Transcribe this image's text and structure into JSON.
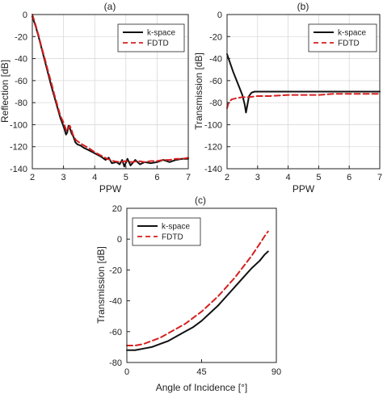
{
  "chart_data": [
    {
      "type": "line",
      "panel_label": "(a)",
      "title": "",
      "xlabel": "PPW",
      "ylabel": "Reflection [dB]",
      "xlim": [
        2,
        7
      ],
      "ylim": [
        -140,
        0
      ],
      "xticks": [
        2,
        3,
        4,
        5,
        6,
        7
      ],
      "yticks": [
        0,
        -20,
        -40,
        -60,
        -80,
        -100,
        -120,
        -140
      ],
      "xtick_labels": [
        "2",
        "3",
        "4",
        "5",
        "6",
        "7"
      ],
      "ytick_labels": [
        "0",
        "-20",
        "-40",
        "-60",
        "-80",
        "-100",
        "-120",
        "-140"
      ],
      "grid": true,
      "legend": "top-right",
      "series": [
        {
          "name": "k-space",
          "color": "#111111",
          "style": "solid",
          "points": [
            [
              2.0,
              -2
            ],
            [
              2.1,
              -10
            ],
            [
              2.2,
              -20
            ],
            [
              2.3,
              -31
            ],
            [
              2.4,
              -42
            ],
            [
              2.5,
              -53
            ],
            [
              2.6,
              -64
            ],
            [
              2.7,
              -74
            ],
            [
              2.8,
              -84
            ],
            [
              2.9,
              -94
            ],
            [
              2.98,
              -100
            ],
            [
              3.03,
              -104
            ],
            [
              3.08,
              -109
            ],
            [
              3.12,
              -107
            ],
            [
              3.16,
              -101
            ],
            [
              3.2,
              -103
            ],
            [
              3.26,
              -108
            ],
            [
              3.32,
              -111
            ],
            [
              3.38,
              -116
            ],
            [
              3.45,
              -118
            ],
            [
              3.55,
              -119
            ],
            [
              3.65,
              -121
            ],
            [
              3.8,
              -123
            ],
            [
              4.0,
              -126
            ],
            [
              4.2,
              -129
            ],
            [
              4.35,
              -132
            ],
            [
              4.45,
              -130
            ],
            [
              4.55,
              -135
            ],
            [
              4.7,
              -134
            ],
            [
              4.8,
              -136
            ],
            [
              4.88,
              -132
            ],
            [
              4.95,
              -138
            ],
            [
              5.05,
              -131
            ],
            [
              5.15,
              -137
            ],
            [
              5.3,
              -132
            ],
            [
              5.45,
              -136
            ],
            [
              5.6,
              -134
            ],
            [
              5.8,
              -135
            ],
            [
              6.0,
              -134
            ],
            [
              6.2,
              -132
            ],
            [
              6.4,
              -134
            ],
            [
              6.6,
              -132
            ],
            [
              6.8,
              -131
            ],
            [
              7.0,
              -131
            ]
          ]
        },
        {
          "name": "FDTD",
          "color": "#d61f1f",
          "style": "dashed",
          "points": [
            [
              2.0,
              0
            ],
            [
              2.1,
              -9
            ],
            [
              2.2,
              -19
            ],
            [
              2.3,
              -30
            ],
            [
              2.4,
              -40
            ],
            [
              2.5,
              -51
            ],
            [
              2.6,
              -61
            ],
            [
              2.7,
              -72
            ],
            [
              2.8,
              -82
            ],
            [
              2.9,
              -92
            ],
            [
              3.0,
              -98
            ],
            [
              3.05,
              -102
            ],
            [
              3.1,
              -106
            ],
            [
              3.15,
              -104
            ],
            [
              3.2,
              -101
            ],
            [
              3.25,
              -104
            ],
            [
              3.3,
              -109
            ],
            [
              3.4,
              -114
            ],
            [
              3.5,
              -116
            ],
            [
              3.6,
              -118
            ],
            [
              3.8,
              -121
            ],
            [
              4.0,
              -125
            ],
            [
              4.2,
              -128
            ],
            [
              4.4,
              -131
            ],
            [
              4.6,
              -133
            ],
            [
              4.8,
              -134
            ],
            [
              5.0,
              -133
            ],
            [
              5.2,
              -134
            ],
            [
              5.4,
              -133
            ],
            [
              5.6,
              -134
            ],
            [
              5.8,
              -133
            ],
            [
              6.0,
              -133
            ],
            [
              6.2,
              -132
            ],
            [
              6.4,
              -132
            ],
            [
              6.6,
              -131
            ],
            [
              6.8,
              -131
            ],
            [
              7.0,
              -130
            ]
          ]
        }
      ]
    },
    {
      "type": "line",
      "panel_label": "(b)",
      "title": "",
      "xlabel": "PPW",
      "ylabel": "Transmission [dB]",
      "xlim": [
        2,
        7
      ],
      "ylim": [
        -140,
        0
      ],
      "xticks": [
        2,
        3,
        4,
        5,
        6,
        7
      ],
      "yticks": [
        0,
        -20,
        -40,
        -60,
        -80,
        -100,
        -120,
        -140
      ],
      "xtick_labels": [
        "2",
        "3",
        "4",
        "5",
        "6",
        "7"
      ],
      "ytick_labels": [
        "0",
        "-20",
        "-40",
        "-60",
        "-80",
        "-100",
        "-120",
        "-140"
      ],
      "grid": true,
      "legend": "top-right",
      "series": [
        {
          "name": "k-space",
          "color": "#111111",
          "style": "solid",
          "points": [
            [
              2.0,
              -36
            ],
            [
              2.1,
              -44
            ],
            [
              2.2,
              -52
            ],
            [
              2.3,
              -59
            ],
            [
              2.4,
              -66
            ],
            [
              2.5,
              -73
            ],
            [
              2.58,
              -82
            ],
            [
              2.62,
              -89
            ],
            [
              2.66,
              -83
            ],
            [
              2.72,
              -74
            ],
            [
              2.8,
              -71
            ],
            [
              2.9,
              -70
            ],
            [
              3.0,
              -70
            ],
            [
              3.3,
              -70
            ],
            [
              3.6,
              -70
            ],
            [
              4.0,
              -70
            ],
            [
              4.5,
              -70
            ],
            [
              5.0,
              -70
            ],
            [
              5.5,
              -70
            ],
            [
              6.0,
              -70
            ],
            [
              6.5,
              -70
            ],
            [
              7.0,
              -70
            ]
          ]
        },
        {
          "name": "FDTD",
          "color": "#d61f1f",
          "style": "dashed",
          "points": [
            [
              2.0,
              -85
            ],
            [
              2.05,
              -80
            ],
            [
              2.15,
              -77
            ],
            [
              2.3,
              -76
            ],
            [
              2.5,
              -75
            ],
            [
              2.7,
              -75
            ],
            [
              3.0,
              -74
            ],
            [
              3.4,
              -74
            ],
            [
              4.0,
              -73
            ],
            [
              4.5,
              -73
            ],
            [
              5.0,
              -73
            ],
            [
              5.5,
              -72
            ],
            [
              6.0,
              -72
            ],
            [
              6.5,
              -72
            ],
            [
              7.0,
              -72
            ]
          ]
        }
      ]
    },
    {
      "type": "line",
      "panel_label": "(c)",
      "title": "",
      "xlabel": "Angle of Incidence [°]",
      "ylabel": "Transmission [dB]",
      "xlim": [
        0,
        90
      ],
      "ylim": [
        -80,
        20
      ],
      "xticks": [
        0,
        45,
        90
      ],
      "yticks": [
        20,
        0,
        -20,
        -40,
        -60,
        -80
      ],
      "xtick_labels": [
        "0",
        "45",
        "90"
      ],
      "ytick_labels": [
        "20",
        "0",
        "-20",
        "-40",
        "-60",
        "-80"
      ],
      "grid": false,
      "legend": "top-left",
      "series": [
        {
          "name": "k-space",
          "color": "#111111",
          "style": "solid",
          "points": [
            [
              0,
              -72
            ],
            [
              5,
              -72
            ],
            [
              10,
              -71
            ],
            [
              15,
              -70
            ],
            [
              20,
              -68
            ],
            [
              25,
              -66
            ],
            [
              30,
              -63
            ],
            [
              35,
              -60
            ],
            [
              40,
              -57
            ],
            [
              45,
              -53
            ],
            [
              50,
              -48
            ],
            [
              55,
              -43
            ],
            [
              60,
              -37
            ],
            [
              65,
              -31
            ],
            [
              70,
              -25
            ],
            [
              75,
              -19
            ],
            [
              80,
              -14
            ],
            [
              83,
              -10
            ],
            [
              85,
              -8
            ]
          ]
        },
        {
          "name": "FDTD",
          "color": "#d61f1f",
          "style": "dashed",
          "points": [
            [
              0,
              -69
            ],
            [
              5,
              -69
            ],
            [
              10,
              -68
            ],
            [
              15,
              -66
            ],
            [
              20,
              -64
            ],
            [
              25,
              -61
            ],
            [
              30,
              -58
            ],
            [
              35,
              -55
            ],
            [
              40,
              -51
            ],
            [
              45,
              -47
            ],
            [
              50,
              -42
            ],
            [
              55,
              -37
            ],
            [
              60,
              -31
            ],
            [
              65,
              -25
            ],
            [
              70,
              -18
            ],
            [
              75,
              -11
            ],
            [
              80,
              -3
            ],
            [
              83,
              2
            ],
            [
              85,
              5
            ]
          ]
        }
      ]
    }
  ]
}
